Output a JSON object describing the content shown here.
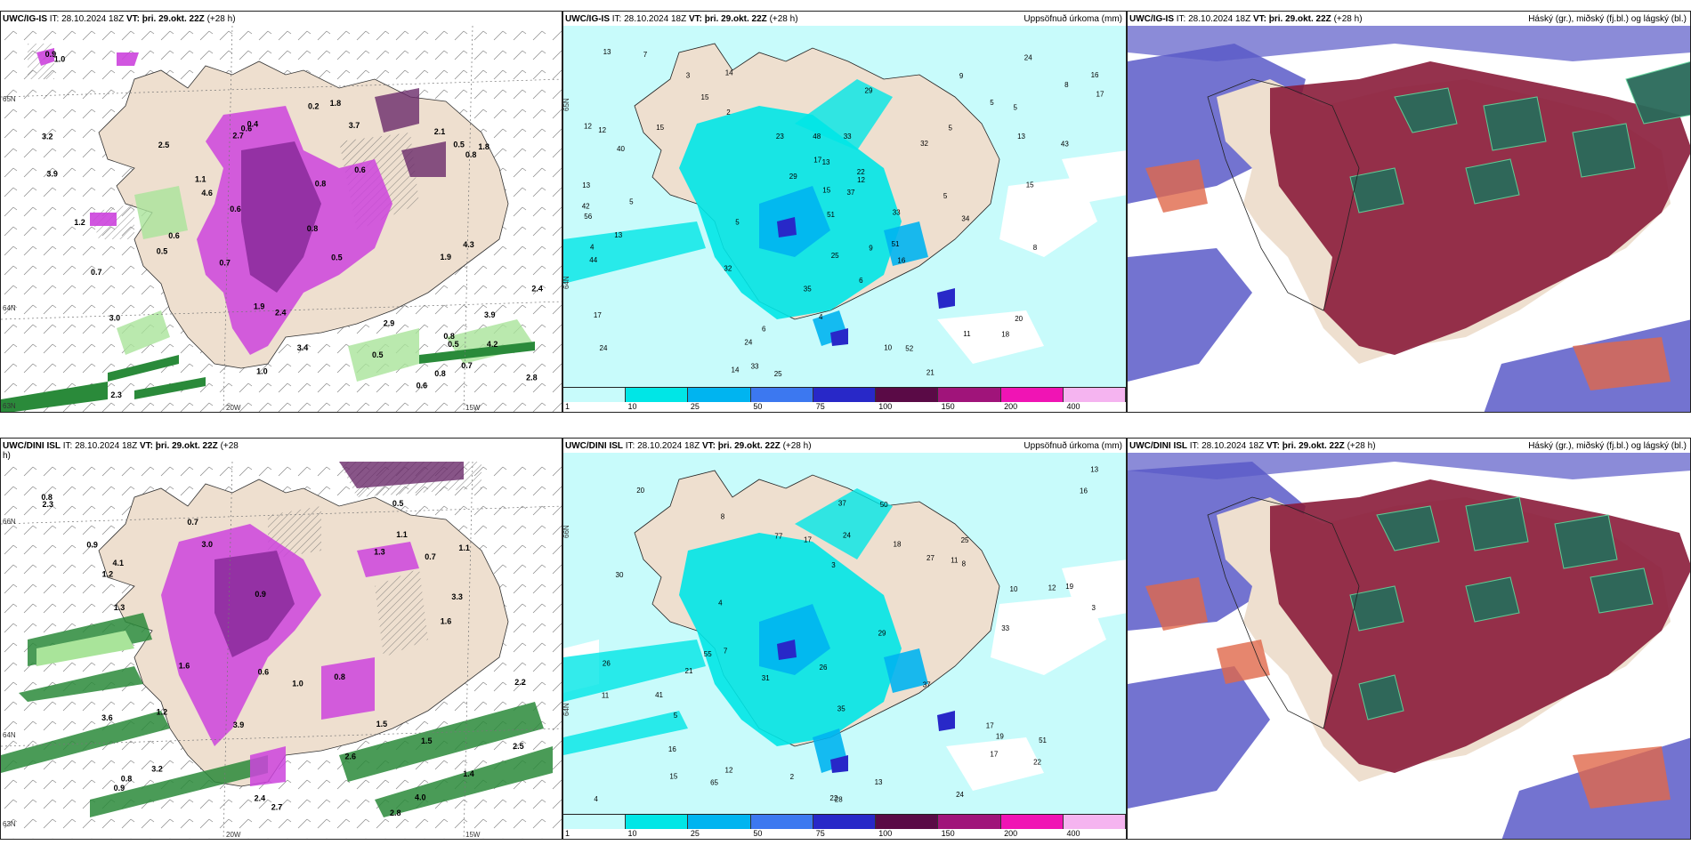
{
  "colors": {
    "land": "#eedfcf",
    "sea_precip": "#c8fbfb",
    "purple": "#cc44dd",
    "dark_purple": "#6a2a6a",
    "green": "#2a8a3a",
    "light_green": "#a9e49a",
    "cloud_blue": "#5a5ac8",
    "cloud_red": "#8a1c3a",
    "cloud_green": "#2a6a5a"
  },
  "panels": {
    "p1": {
      "model": "UWC/IG-IS",
      "it": "IT: 28.10.2024 18Z",
      "vt": "VT: þri. 29.okt. 22Z",
      "lead": "(+28 h)",
      "right": "",
      "lat1": "65N",
      "lat2": "64N",
      "lat3": "63N",
      "lon1": "20W",
      "lon2": "15W"
    },
    "p2": {
      "model": "UWC/IG-IS",
      "it": "IT: 28.10.2024 18Z",
      "vt": "VT: þri. 29.okt. 22Z",
      "lead": "(+28 h)",
      "right": "Uppsöfnuð úrkoma (mm)",
      "lat1": "65N",
      "lat2": "64N"
    },
    "p3": {
      "model": "UWC/IG-IS",
      "it": "IT: 28.10.2024 18Z",
      "vt": "VT: þri. 29.okt. 22Z",
      "lead": "(+28 h)",
      "right": "Háský (gr.), miðský (fj.bl.) og lágský (bl.)"
    },
    "p4": {
      "model": "UWC/DINI ISL",
      "it": "IT: 28.10.2024 18Z",
      "vt": "VT: þri. 29.okt. 22Z",
      "lead": "(+28",
      "lead2": "h)",
      "right": "",
      "lat1": "66N",
      "lat2": "64N",
      "lat3": "63N",
      "lon1": "20W",
      "lon2": "15W"
    },
    "p5": {
      "model": "UWC/DINI ISL",
      "it": "IT: 28.10.2024 18Z",
      "vt": "VT: þri. 29.okt. 22Z",
      "lead": "(+28 h)",
      "right": "Uppsöfnuð úrkoma (mm)",
      "lat1": "66N",
      "lat2": "64N"
    },
    "p6": {
      "model": "UWC/DINI ISL",
      "it": "IT: 28.10.2024 18Z",
      "vt": "VT: þri. 29.okt. 22Z",
      "lead": "(+28 h)",
      "right": "Háský (gr.), miðský (fj.bl.) og lágský (bl.)"
    }
  },
  "legend": {
    "colors": [
      "#c8fbfb",
      "#00e6e6",
      "#00b4f0",
      "#3c78f0",
      "#2828c8",
      "#5a0a46",
      "#a0147a",
      "#f014b4",
      "#f5b4f0"
    ],
    "ticks": [
      "1",
      "10",
      "25",
      "50",
      "75",
      "100",
      "150",
      "200",
      "400"
    ]
  },
  "p1_labels": [
    "0.7",
    "0.6",
    "0.4",
    "1.8",
    "2.3",
    "3.4",
    "2.8",
    "0.6",
    "0.5",
    "0.7",
    "1.9",
    "2.9",
    "1.2",
    "3.7",
    "1.9",
    "1.0",
    "0.2",
    "0.6",
    "2.1",
    "3.9",
    "1.8",
    "2.4",
    "3.9",
    "0.6",
    "0.8",
    "2.5",
    "4.3",
    "3.0",
    "4.2",
    "2.4",
    "0.8",
    "4.6",
    "3.2",
    "0.7",
    "0.8",
    "0.5",
    "0.6",
    "0.5",
    "0.9",
    "1.0",
    "0.8",
    "0.5",
    "1.1",
    "2.7",
    "0.8",
    "0.5"
  ],
  "p2_labels": [
    "5",
    "6",
    "5",
    "5",
    "4",
    "5",
    "12",
    "13",
    "15",
    "17",
    "13",
    "9",
    "12",
    "17",
    "24",
    "24",
    "11",
    "15",
    "14",
    "10",
    "13",
    "15",
    "8",
    "20",
    "37",
    "43",
    "51",
    "48",
    "40",
    "33",
    "25",
    "21",
    "34",
    "52",
    "44",
    "56",
    "22",
    "25",
    "33",
    "35",
    "23",
    "29",
    "32",
    "24",
    "15",
    "12",
    "18",
    "33",
    "29",
    "42",
    "32",
    "51",
    "16",
    "13",
    "17",
    "13",
    "16",
    "14",
    "9",
    "8",
    "4",
    "5",
    "7",
    "2",
    "3",
    "6",
    "5"
  ],
  "p4_labels": [
    "0.6",
    "1.3",
    "2.2",
    "1.6",
    "0.9",
    "1.5",
    "3.2",
    "4.0",
    "3.9",
    "2.6",
    "2.5",
    "2.4",
    "1.5",
    "2.3",
    "3.6",
    "0.8",
    "0.7",
    "3.3",
    "2.8",
    "1.2",
    "1.1",
    "0.9",
    "1.4",
    "1.0",
    "1.1",
    "0.7",
    "0.8",
    "0.5",
    "1.2",
    "1.3",
    "2.7",
    "0.8",
    "1.6",
    "3.0",
    "4.1",
    "0.9"
  ],
  "p5_labels": [
    "3",
    "4",
    "4",
    "5",
    "13",
    "12",
    "11",
    "22",
    "16",
    "12",
    "8",
    "7",
    "30",
    "20",
    "19",
    "29",
    "24",
    "26",
    "25",
    "17",
    "21",
    "51",
    "50",
    "35",
    "31",
    "28",
    "27",
    "22",
    "24",
    "26",
    "18",
    "16",
    "13",
    "11",
    "15",
    "17",
    "41",
    "37",
    "33",
    "55",
    "65",
    "77",
    "37",
    "17",
    "10",
    "8",
    "2",
    "3",
    "19"
  ]
}
